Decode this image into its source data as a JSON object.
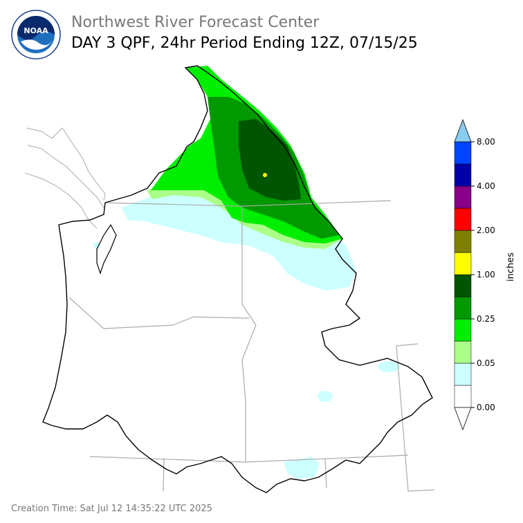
{
  "header": {
    "agency": "Northwest River Forecast Center",
    "product": "DAY 3 QPF, 24hr Period Ending 12Z, 07/15/25",
    "logo_text": "NOAA"
  },
  "footer": {
    "creation_time": "Creation Time: Sat Jul 12 14:35:22 UTC 2025"
  },
  "colorbar": {
    "unit_label": "inches",
    "colors": [
      "#ffffff",
      "#ccffff",
      "#aaff88",
      "#00ee00",
      "#009900",
      "#005500",
      "#ffff00",
      "#808000",
      "#ff0000",
      "#880088",
      "#0000aa",
      "#0044ff",
      "#88ccee"
    ],
    "tick_labels": [
      "0.00",
      "0.05",
      "0.25",
      "1.00",
      "2.00",
      "4.00",
      "8.00"
    ]
  },
  "map": {
    "colors": {
      "light_cyan": "#ccffff",
      "light_green": "#aaff88",
      "bright_green": "#00ee00",
      "mid_green": "#009900",
      "dark_green": "#005500",
      "yellow": "#ffff00",
      "boundary": "#000000",
      "state_line": "#aaaaaa"
    }
  }
}
